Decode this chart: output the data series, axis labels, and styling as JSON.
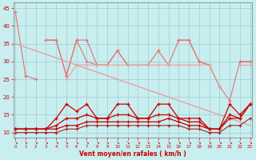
{
  "x": [
    0,
    1,
    2,
    3,
    4,
    5,
    6,
    7,
    8,
    9,
    10,
    11,
    12,
    13,
    14,
    15,
    16,
    17,
    18,
    19,
    20,
    21,
    22,
    23
  ],
  "series": [
    {
      "name": "line_top1",
      "color": "#e87070",
      "lw": 0.8,
      "marker": "+",
      "ms": 3,
      "mew": 0.8,
      "y": [
        44,
        26,
        25,
        null,
        null,
        null,
        null,
        null,
        null,
        null,
        null,
        null,
        null,
        null,
        null,
        null,
        null,
        null,
        null,
        null,
        null,
        null,
        null,
        null
      ]
    },
    {
      "name": "line_top2",
      "color": "#e87070",
      "lw": 0.8,
      "marker": "+",
      "ms": 3,
      "mew": 0.8,
      "y": [
        null,
        26,
        null,
        36,
        36,
        26,
        36,
        30,
        29,
        29,
        33,
        29,
        29,
        29,
        33,
        29,
        36,
        36,
        30,
        29,
        23,
        19,
        30,
        30
      ]
    },
    {
      "name": "line_top3",
      "color": "#e87070",
      "lw": 0.8,
      "marker": "+",
      "ms": 3,
      "mew": 0.8,
      "y": [
        null,
        null,
        null,
        36,
        36,
        26,
        36,
        36,
        29,
        29,
        33,
        29,
        null,
        null,
        33,
        null,
        36,
        36,
        30,
        29,
        23,
        null,
        30,
        30
      ]
    },
    {
      "name": "line_diagonal",
      "color": "#e8a0a0",
      "lw": 1.0,
      "marker": null,
      "ms": 0,
      "mew": 0,
      "y": [
        35,
        34,
        33,
        32,
        31,
        30,
        29,
        28,
        27,
        26,
        25,
        24,
        23,
        22,
        21,
        20,
        19,
        18,
        17,
        16,
        15,
        14,
        13,
        12
      ]
    },
    {
      "name": "line_mid1",
      "color": "#e8a0a0",
      "lw": 0.8,
      "marker": "+",
      "ms": 3,
      "mew": 0.8,
      "y": [
        25,
        null,
        null,
        null,
        null,
        25,
        29,
        29,
        29,
        29,
        29,
        29,
        29,
        29,
        29,
        29,
        29,
        29,
        29,
        29,
        23,
        null,
        29,
        29
      ]
    },
    {
      "name": "line_red1",
      "color": "#cc0000",
      "lw": 0.9,
      "marker": "+",
      "ms": 3,
      "mew": 0.9,
      "y": [
        11,
        11,
        11,
        11,
        14,
        18,
        16,
        18,
        14,
        14,
        18,
        18,
        14,
        14,
        18,
        18,
        14,
        14,
        14,
        11,
        11,
        18,
        15,
        18
      ]
    },
    {
      "name": "line_red2",
      "color": "#cc0000",
      "lw": 0.9,
      "marker": "+",
      "ms": 3,
      "mew": 0.9,
      "y": [
        11,
        11,
        11,
        11,
        12,
        14,
        14,
        15,
        14,
        14,
        15,
        15,
        14,
        14,
        15,
        15,
        14,
        13,
        13,
        11,
        11,
        15,
        14,
        18
      ]
    },
    {
      "name": "line_red3",
      "color": "#cc0000",
      "lw": 0.9,
      "marker": "+",
      "ms": 3,
      "mew": 0.9,
      "y": [
        11,
        11,
        11,
        11,
        11,
        12,
        12,
        13,
        13,
        13,
        13,
        13,
        13,
        13,
        13,
        14,
        13,
        12,
        12,
        11,
        11,
        14,
        14,
        18
      ]
    },
    {
      "name": "line_dark1",
      "color": "#aa2222",
      "lw": 0.8,
      "marker": "+",
      "ms": 3,
      "mew": 0.8,
      "y": [
        10,
        10,
        10,
        10,
        10,
        11,
        11,
        12,
        12,
        12,
        12,
        12,
        12,
        12,
        12,
        12,
        12,
        11,
        11,
        10,
        10,
        12,
        12,
        14
      ]
    }
  ],
  "xlim": [
    -0.2,
    23.2
  ],
  "ylim": [
    8.5,
    46.5
  ],
  "yticks": [
    10,
    15,
    20,
    25,
    30,
    35,
    40,
    45
  ],
  "xticks": [
    0,
    1,
    2,
    3,
    4,
    5,
    6,
    7,
    8,
    9,
    10,
    11,
    12,
    13,
    14,
    15,
    16,
    17,
    18,
    19,
    20,
    21,
    22,
    23
  ],
  "xlabel": "Vent moyen/en rafales ( km/h )",
  "bg_color": "#c8eef0",
  "grid_color": "#a0ccd0",
  "tick_color": "#cc0000",
  "label_color": "#cc0000",
  "spine_color": "#888888",
  "arrow_symbol": "↘"
}
